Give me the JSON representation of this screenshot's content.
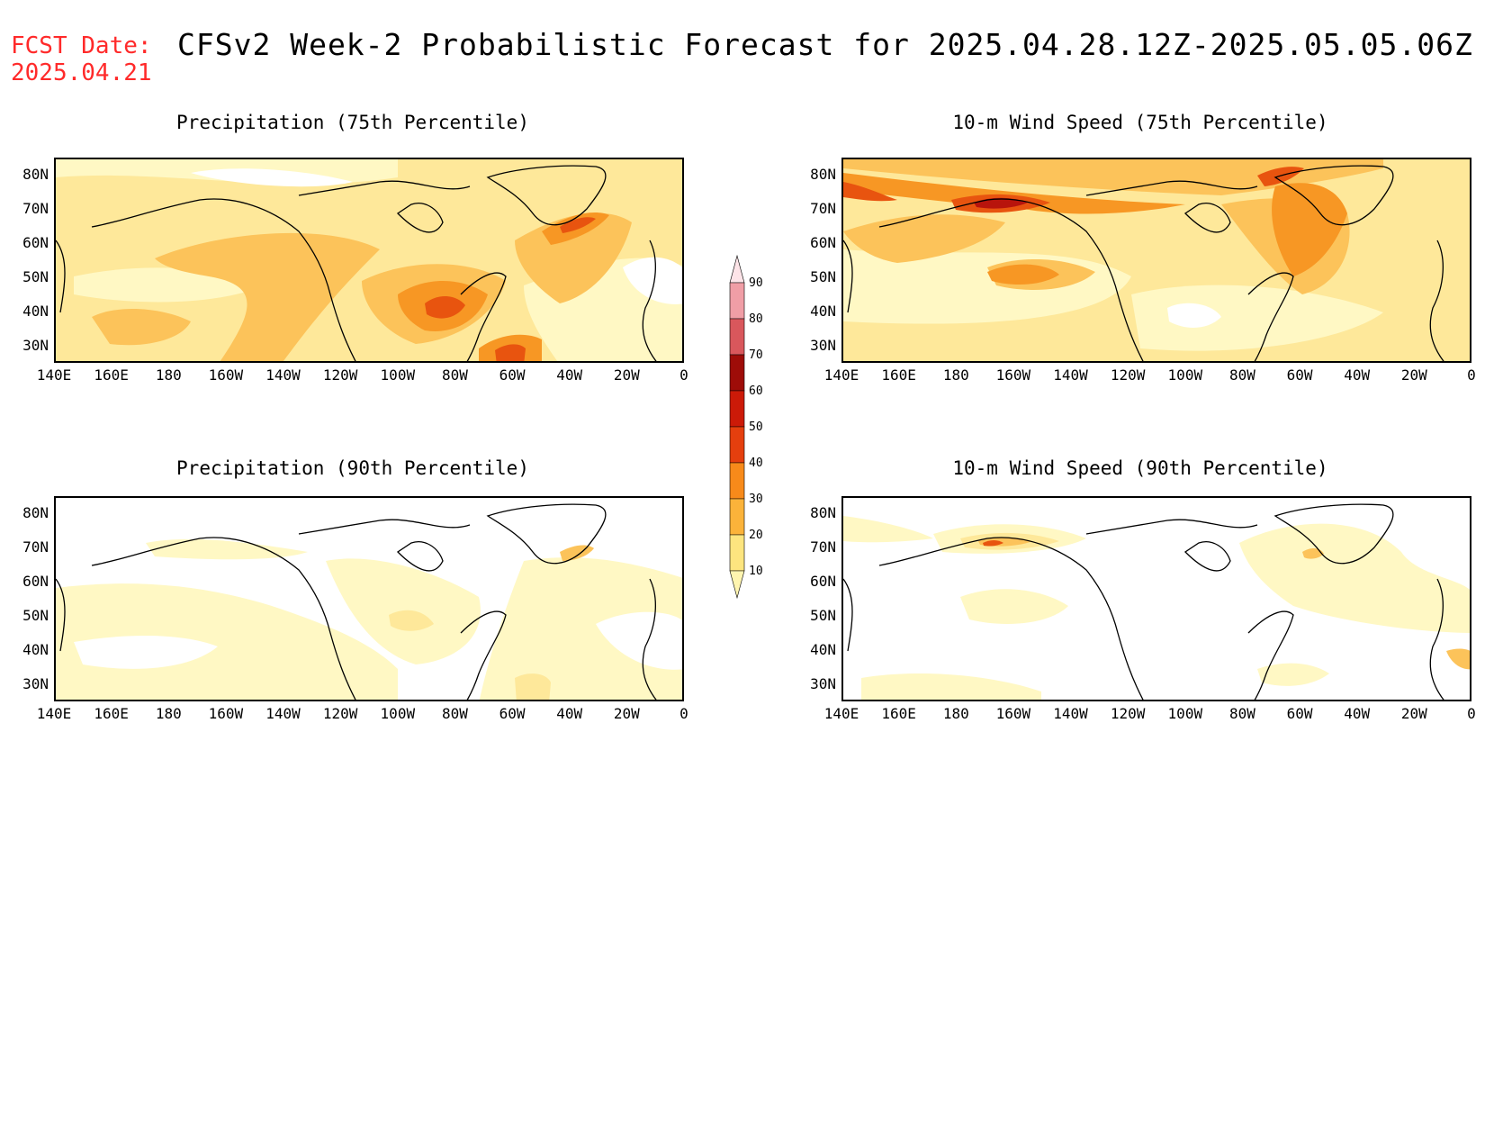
{
  "header": {
    "fcst_line1": "FCST Date:",
    "fcst_line2": "2025.04.21",
    "title": "CFSv2 Week-2 Probabilistic Forecast for 2025.04.28.12Z-2025.05.05.06Z"
  },
  "axes": {
    "lat_ticks": [
      "80N",
      "70N",
      "60N",
      "50N",
      "40N",
      "30N"
    ],
    "lon_ticks": [
      "140E",
      "160E",
      "180",
      "160W",
      "140W",
      "120W",
      "100W",
      "80W",
      "60W",
      "40W",
      "20W",
      "0"
    ],
    "lat_range": [
      25,
      85
    ],
    "lon_range": [
      140,
      360
    ]
  },
  "panels": [
    {
      "title": "Precipitation (75th Percentile)"
    },
    {
      "title": "10-m Wind Speed (75th Percentile)"
    },
    {
      "title": "Precipitation (90th Percentile)"
    },
    {
      "title": "10-m Wind Speed (90th Percentile)"
    }
  ],
  "colorbar": {
    "levels": [
      "10",
      "20",
      "30",
      "40",
      "50",
      "60",
      "70",
      "80",
      "90"
    ],
    "colors": [
      "#fff5b0",
      "#fde57f",
      "#fbb33a",
      "#f78a1a",
      "#e53f0e",
      "#cc1a08",
      "#9e0c08",
      "#d9575c",
      "#f09ea6",
      "#fde4e8"
    ]
  },
  "colors": {
    "c1": "#fff8c4",
    "c2": "#fee89a",
    "c3": "#fcc35a",
    "c4": "#f79724",
    "c5": "#e8540f",
    "c6": "#b8140c"
  }
}
